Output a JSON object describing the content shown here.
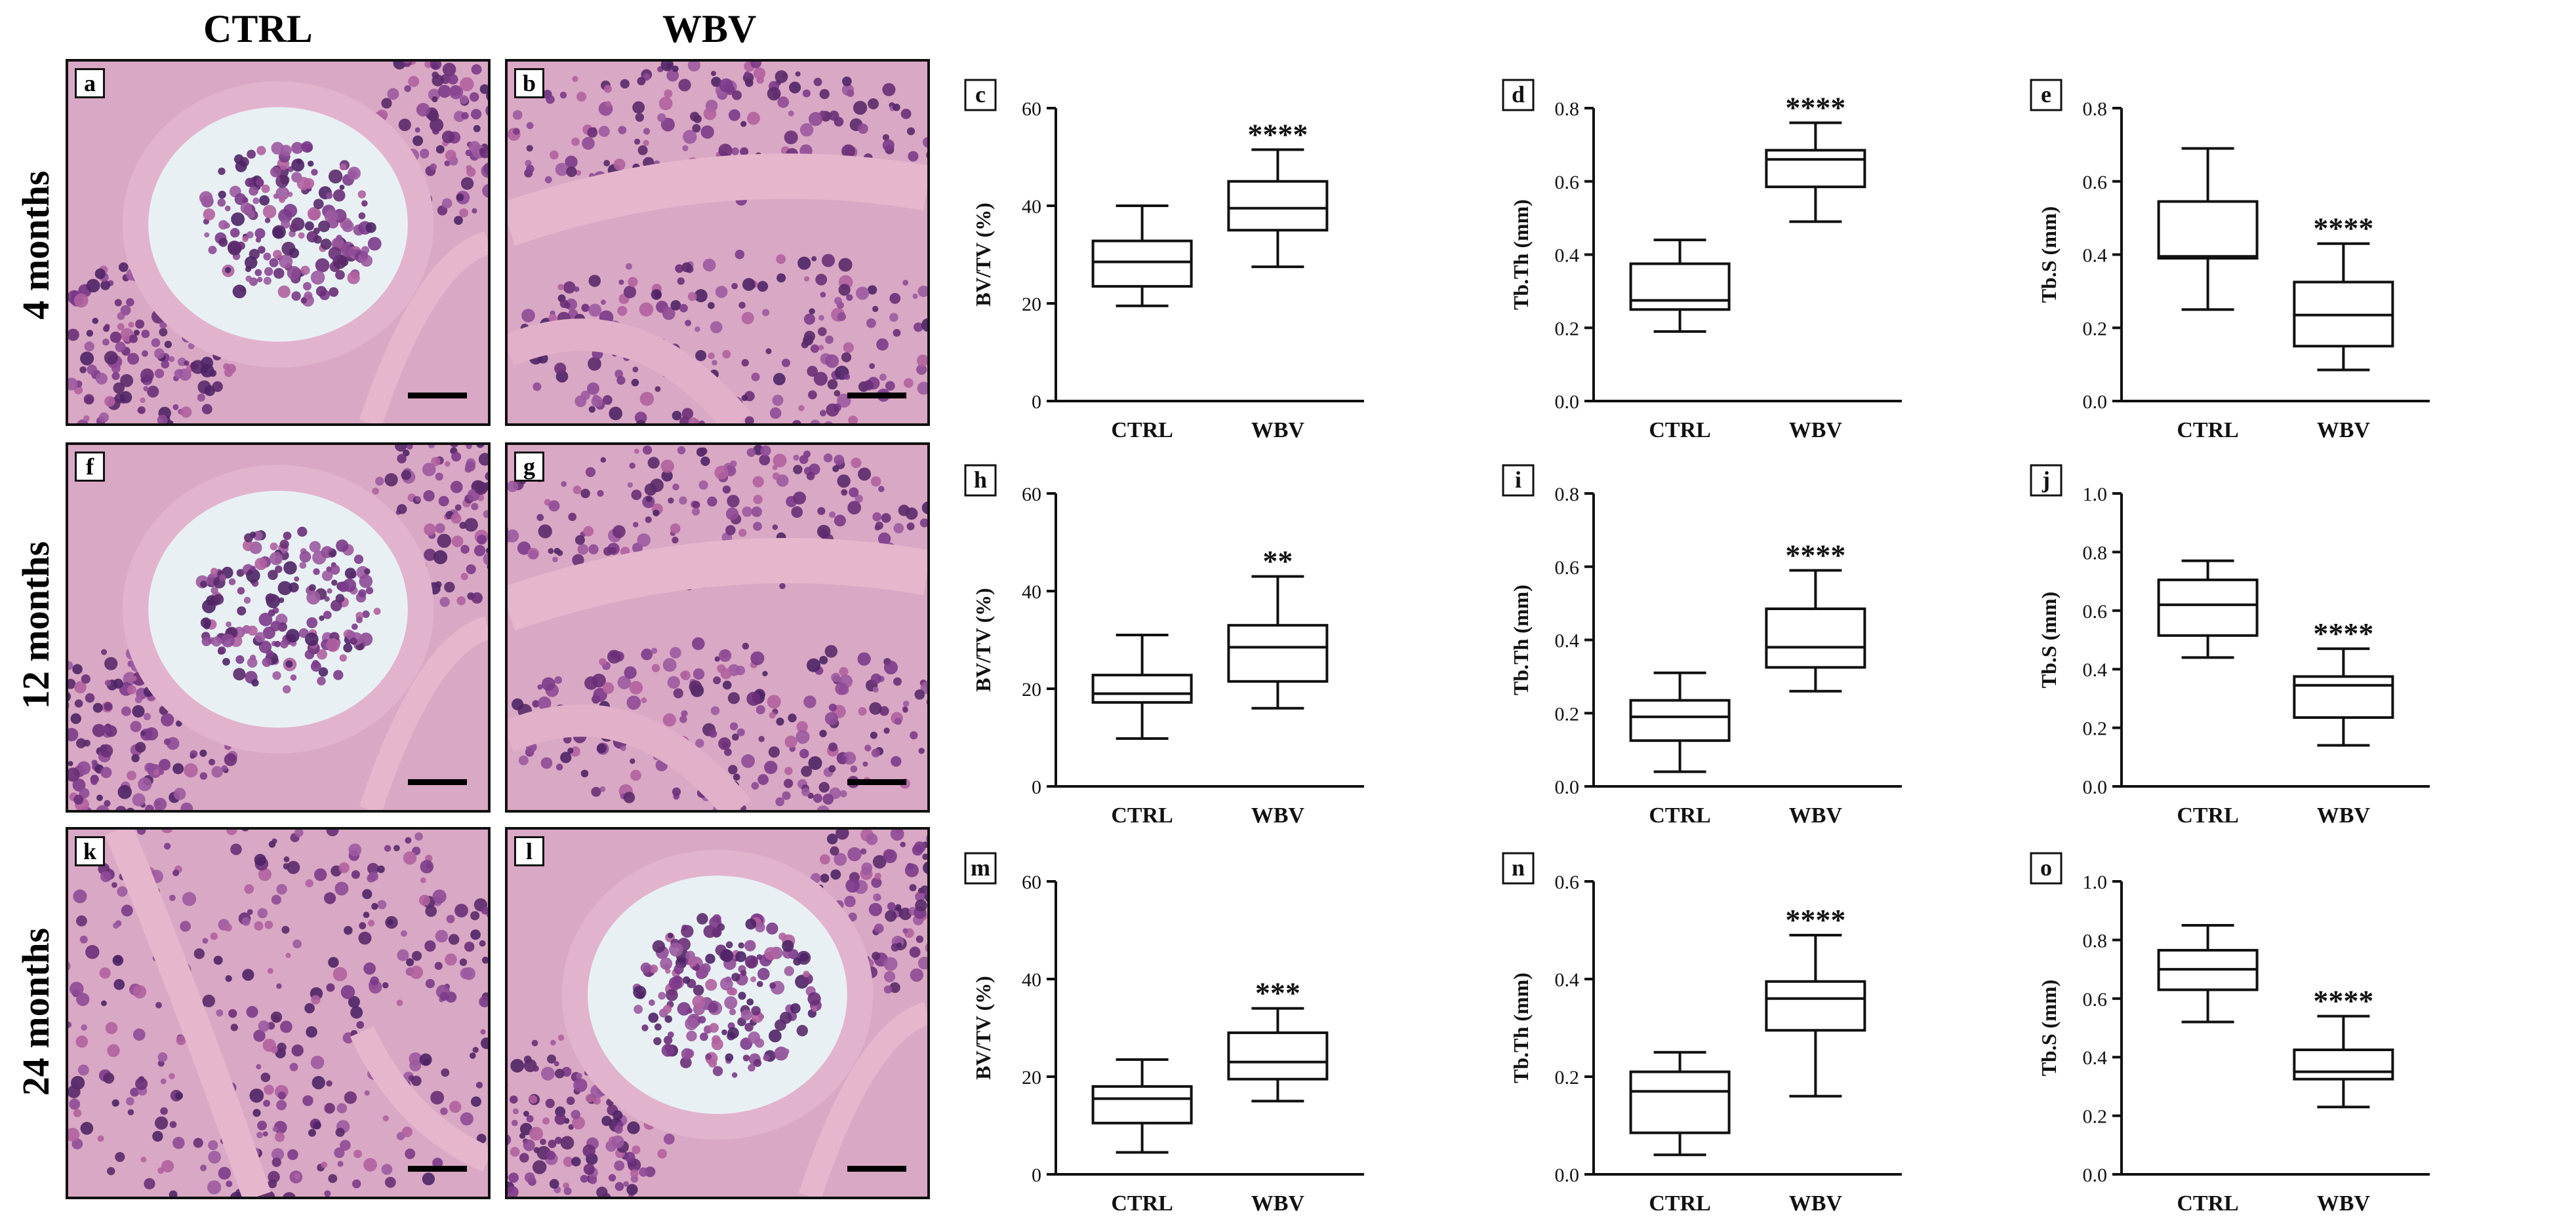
{
  "columns": [
    "CTRL",
    "WBV"
  ],
  "rows": [
    "4 months",
    "12 months",
    "24 months"
  ],
  "photos": [
    {
      "letter": "a",
      "theme": "marrow-ring"
    },
    {
      "letter": "b",
      "theme": "trabecular-band"
    },
    {
      "letter": "f",
      "theme": "marrow-ring"
    },
    {
      "letter": "g",
      "theme": "trabecular-band"
    },
    {
      "letter": "k",
      "theme": "dense-marrow"
    },
    {
      "letter": "l",
      "theme": "marrow-ring"
    }
  ],
  "colors": {
    "stain_pink": "#e6b7cc",
    "marrow_purple": "#6a2f78",
    "background": "#ffffff"
  },
  "chart_data": [
    {
      "panel": "c",
      "type": "box",
      "ylabel": "BV/TV (%)",
      "ylim": [
        0,
        60
      ],
      "yticks": [
        "0",
        "20",
        "40",
        "60"
      ],
      "categories": [
        "CTRL",
        "WBV"
      ],
      "boxes": [
        {
          "min": 19.5,
          "q1": 23.5,
          "median": 28.5,
          "q3": 32.8,
          "max": 40
        },
        {
          "min": 27.5,
          "q1": 35,
          "median": 39.5,
          "q3": 45,
          "max": 51.5
        }
      ],
      "significance": [
        "",
        "****"
      ]
    },
    {
      "panel": "d",
      "type": "box",
      "ylabel": "Tb.Th (mm)",
      "ylim": [
        0,
        0.8
      ],
      "yticks": [
        "0.0",
        "0.2",
        "0.4",
        "0.6",
        "0.8"
      ],
      "categories": [
        "CTRL",
        "WBV"
      ],
      "boxes": [
        {
          "min": 0.19,
          "q1": 0.25,
          "median": 0.275,
          "q3": 0.375,
          "max": 0.44
        },
        {
          "min": 0.49,
          "q1": 0.585,
          "median": 0.66,
          "q3": 0.685,
          "max": 0.76
        }
      ],
      "significance": [
        "",
        "****"
      ]
    },
    {
      "panel": "e",
      "type": "box",
      "ylabel": "Tb.S (mm)",
      "ylim": [
        0,
        0.8
      ],
      "yticks": [
        "0.0",
        "0.2",
        "0.4",
        "0.6",
        "0.8"
      ],
      "categories": [
        "CTRL",
        "WBV"
      ],
      "boxes": [
        {
          "min": 0.25,
          "q1": 0.39,
          "median": 0.395,
          "q3": 0.545,
          "max": 0.69
        },
        {
          "min": 0.085,
          "q1": 0.15,
          "median": 0.235,
          "q3": 0.325,
          "max": 0.43
        }
      ],
      "significance": [
        "",
        "****"
      ]
    },
    {
      "panel": "h",
      "type": "box",
      "ylabel": "BV/TV (%)",
      "ylim": [
        0,
        60
      ],
      "yticks": [
        "0",
        "20",
        "40",
        "60"
      ],
      "categories": [
        "CTRL",
        "WBV"
      ],
      "boxes": [
        {
          "min": 9.8,
          "q1": 17.2,
          "median": 19,
          "q3": 22.8,
          "max": 31
        },
        {
          "min": 16,
          "q1": 21.5,
          "median": 28.5,
          "q3": 33,
          "max": 43
        }
      ],
      "significance": [
        "",
        "**"
      ]
    },
    {
      "panel": "i",
      "type": "box",
      "ylabel": "Tb.Th (mm)",
      "ylim": [
        0,
        0.8
      ],
      "yticks": [
        "0.0",
        "0.2",
        "0.4",
        "0.6",
        "0.8"
      ],
      "categories": [
        "CTRL",
        "WBV"
      ],
      "boxes": [
        {
          "min": 0.04,
          "q1": 0.125,
          "median": 0.19,
          "q3": 0.235,
          "max": 0.31
        },
        {
          "min": 0.26,
          "q1": 0.325,
          "median": 0.38,
          "q3": 0.485,
          "max": 0.59
        }
      ],
      "significance": [
        "",
        "****"
      ]
    },
    {
      "panel": "j",
      "type": "box",
      "ylabel": "Tb.S (mm)",
      "ylim": [
        0,
        1.0
      ],
      "yticks": [
        "0.0",
        "0.2",
        "0.4",
        "0.6",
        "0.8",
        "1.0"
      ],
      "categories": [
        "CTRL",
        "WBV"
      ],
      "boxes": [
        {
          "min": 0.44,
          "q1": 0.515,
          "median": 0.62,
          "q3": 0.705,
          "max": 0.77
        },
        {
          "min": 0.14,
          "q1": 0.235,
          "median": 0.345,
          "q3": 0.375,
          "max": 0.47
        }
      ],
      "significance": [
        "",
        "****"
      ]
    },
    {
      "panel": "m",
      "type": "box",
      "ylabel": "BV/TV (%)",
      "ylim": [
        0,
        60
      ],
      "yticks": [
        "0",
        "20",
        "40",
        "60"
      ],
      "categories": [
        "CTRL",
        "WBV"
      ],
      "boxes": [
        {
          "min": 4.5,
          "q1": 10.5,
          "median": 15.5,
          "q3": 18,
          "max": 23.5
        },
        {
          "min": 15,
          "q1": 19.5,
          "median": 23,
          "q3": 29,
          "max": 34
        }
      ],
      "significance": [
        "",
        "***"
      ]
    },
    {
      "panel": "n",
      "type": "box",
      "ylabel": "Tb.Th (mm)",
      "ylim": [
        0,
        0.6
      ],
      "yticks": [
        "0.0",
        "0.2",
        "0.4",
        "0.6"
      ],
      "categories": [
        "CTRL",
        "WBV"
      ],
      "boxes": [
        {
          "min": 0.04,
          "q1": 0.085,
          "median": 0.17,
          "q3": 0.21,
          "max": 0.25
        },
        {
          "min": 0.16,
          "q1": 0.295,
          "median": 0.36,
          "q3": 0.395,
          "max": 0.49
        }
      ],
      "significance": [
        "",
        "****"
      ]
    },
    {
      "panel": "o",
      "type": "box",
      "ylabel": "Tb.S (mm)",
      "ylim": [
        0,
        1.0
      ],
      "yticks": [
        "0.0",
        "0.2",
        "0.4",
        "0.6",
        "0.8",
        "1.0"
      ],
      "categories": [
        "CTRL",
        "WBV"
      ],
      "boxes": [
        {
          "min": 0.52,
          "q1": 0.63,
          "median": 0.7,
          "q3": 0.765,
          "max": 0.85
        },
        {
          "min": 0.23,
          "q1": 0.325,
          "median": 0.35,
          "q3": 0.425,
          "max": 0.54
        }
      ],
      "significance": [
        "",
        "****"
      ]
    }
  ]
}
